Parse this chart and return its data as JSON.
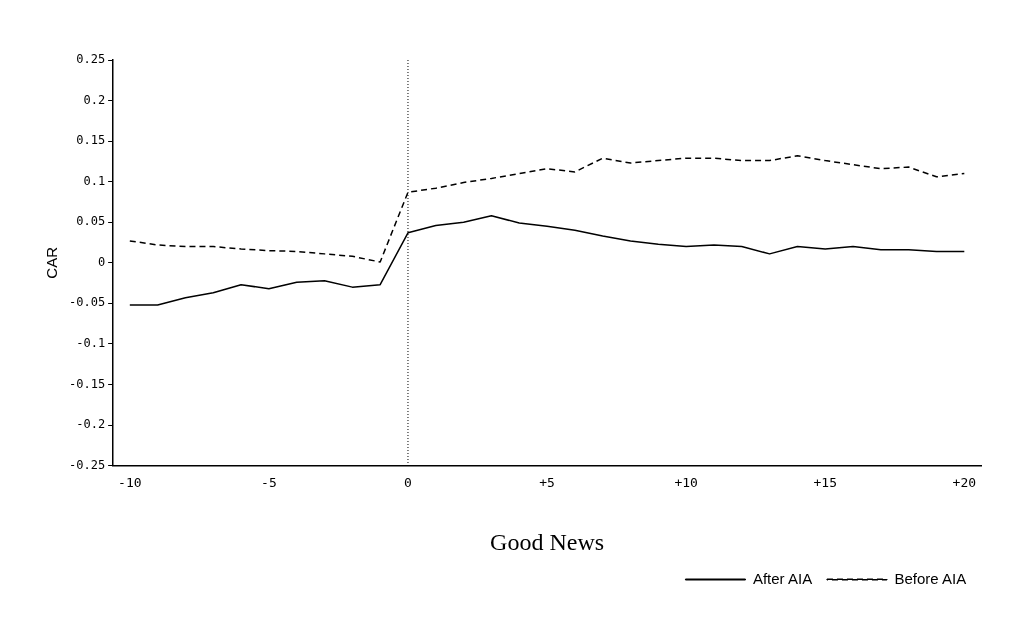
{
  "chart_data": {
    "type": "line",
    "xlabel": "Good News",
    "ylabel": "CAR",
    "x": [
      -10,
      -9,
      -8,
      -7,
      -6,
      -5,
      -4,
      -3,
      -2,
      -1,
      0,
      1,
      2,
      3,
      4,
      5,
      6,
      7,
      8,
      9,
      10,
      11,
      12,
      13,
      14,
      15,
      16,
      17,
      18,
      19,
      20
    ],
    "series": [
      {
        "name": "After AIA",
        "color": "#000000",
        "line_style": "solid",
        "values": [
          -0.052,
          -0.052,
          -0.043,
          -0.037,
          -0.027,
          -0.032,
          -0.024,
          -0.022,
          -0.03,
          -0.027,
          0.037,
          0.046,
          0.05,
          0.058,
          0.049,
          0.045,
          0.04,
          0.033,
          0.027,
          0.023,
          0.02,
          0.022,
          0.02,
          0.011,
          0.02,
          0.017,
          0.02,
          0.016,
          0.016,
          0.014,
          0.014
        ]
      },
      {
        "name": "Before AIA",
        "color": "#000000",
        "line_style": "dashed",
        "values": [
          0.027,
          0.022,
          0.02,
          0.02,
          0.017,
          0.015,
          0.014,
          0.011,
          0.008,
          0.001,
          0.087,
          0.092,
          0.099,
          0.104,
          0.11,
          0.116,
          0.112,
          0.129,
          0.123,
          0.126,
          0.129,
          0.129,
          0.126,
          0.126,
          0.132,
          0.126,
          0.121,
          0.116,
          0.118,
          0.106,
          0.11
        ]
      }
    ],
    "xlim": [
      -10.6,
      20.6
    ],
    "xticks": [
      -10,
      -5,
      0,
      {
        "value": 5,
        "label": "+5"
      },
      {
        "value": 10,
        "label": "+10"
      },
      {
        "value": 15,
        "label": "+15"
      },
      {
        "value": 20,
        "label": "+20"
      }
    ],
    "ylim": [
      -0.25,
      0.25
    ],
    "yticks": [
      -0.25,
      -0.2,
      -0.15,
      -0.1,
      -0.05,
      0,
      0.05,
      0.1,
      0.15,
      0.2,
      0.25
    ],
    "ref_lines": [
      {
        "axis": "x",
        "value": 0,
        "line_style": "dotted",
        "color": "#000000"
      }
    ],
    "grid": false,
    "legend": "bottom right",
    "marker": "none"
  }
}
